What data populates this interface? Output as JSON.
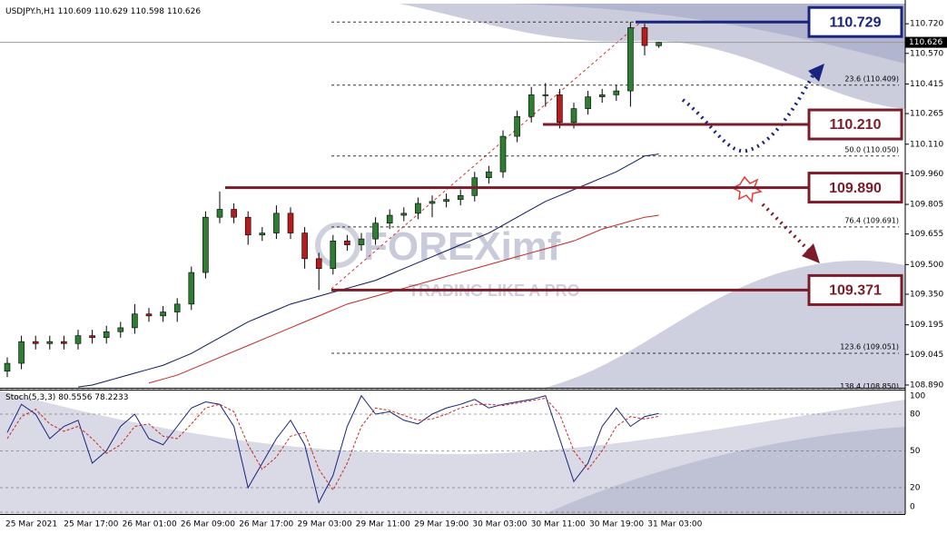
{
  "chart_data": {
    "type": "candlestick",
    "symbol": "USDJPY.h,H1",
    "up_color": "#2e7d32",
    "down_color": "#b71c1c",
    "ylim": [
      108.876,
      110.822
    ],
    "yticks": [
      {
        "value": 110.72,
        "label": "110.720"
      },
      {
        "value": 110.57,
        "label": "110.570"
      },
      110.415,
      110.265,
      {
        "value": 110.11,
        "label": "110.110"
      },
      {
        "value": 109.96,
        "label": "109.960"
      },
      109.805,
      109.655,
      {
        "value": 109.5,
        "label": "109.500"
      },
      {
        "value": 109.35,
        "label": "109.350"
      },
      109.195,
      109.045,
      {
        "value": 108.89,
        "label": "108.890"
      }
    ],
    "x_labels": [
      "25 Mar 2021",
      "25 Mar 17:00",
      "26 Mar 01:00",
      "26 Mar 09:00",
      "26 Mar 17:00",
      "29 Mar 03:00",
      "29 Mar 11:00",
      "29 Mar 19:00",
      "30 Mar 03:00",
      "30 Mar 11:00",
      "30 Mar 19:00",
      "31 Mar 03:00"
    ],
    "open": [
      108.96,
      109.0,
      109.11,
      109.1,
      109.11,
      109.1,
      109.14,
      109.13,
      109.16,
      109.18,
      109.25,
      109.24,
      109.26,
      109.3,
      109.46,
      109.74,
      109.78,
      109.74,
      109.65,
      109.66,
      109.76,
      109.66,
      109.53,
      109.48,
      109.62,
      109.6,
      109.63,
      109.71,
      109.75,
      109.76,
      109.81,
      109.82,
      109.83,
      109.85,
      109.94,
      109.97,
      110.15,
      110.25,
      110.36,
      110.36,
      110.22,
      110.29,
      110.35,
      110.36,
      110.38,
      110.7,
      110.609
    ],
    "high": [
      109.03,
      109.14,
      109.14,
      109.14,
      109.14,
      109.17,
      109.17,
      109.19,
      109.21,
      109.3,
      109.28,
      109.29,
      109.33,
      109.49,
      109.77,
      109.87,
      109.81,
      109.77,
      109.69,
      109.8,
      109.79,
      109.69,
      109.56,
      109.65,
      109.65,
      109.66,
      109.74,
      109.78,
      109.79,
      109.84,
      109.85,
      109.86,
      109.88,
      109.97,
      110.0,
      110.18,
      110.28,
      110.4,
      110.42,
      110.39,
      110.32,
      110.38,
      110.39,
      110.41,
      110.729,
      110.72,
      110.629
    ],
    "low": [
      108.93,
      108.97,
      109.07,
      109.07,
      109.07,
      109.07,
      109.1,
      109.1,
      109.13,
      109.15,
      109.21,
      109.21,
      109.21,
      109.27,
      109.43,
      109.71,
      109.71,
      109.6,
      109.62,
      109.63,
      109.63,
      109.48,
      109.371,
      109.45,
      109.57,
      109.57,
      109.6,
      109.68,
      109.72,
      109.73,
      109.74,
      109.79,
      109.8,
      109.82,
      109.91,
      109.94,
      110.12,
      110.22,
      110.3,
      110.19,
      110.19,
      110.26,
      110.32,
      110.33,
      110.3,
      110.56,
      110.598
    ],
    "close": [
      109.0,
      109.11,
      109.1,
      109.11,
      109.1,
      109.14,
      109.13,
      109.16,
      109.18,
      109.25,
      109.24,
      109.26,
      109.3,
      109.46,
      109.74,
      109.78,
      109.74,
      109.65,
      109.66,
      109.76,
      109.66,
      109.53,
      109.48,
      109.62,
      109.6,
      109.63,
      109.71,
      109.75,
      109.76,
      109.81,
      109.82,
      109.83,
      109.85,
      109.94,
      109.97,
      110.15,
      110.25,
      110.36,
      110.36,
      110.22,
      110.29,
      110.35,
      110.36,
      110.38,
      110.7,
      110.61,
      110.626
    ],
    "moving_averages": [
      {
        "color": "#0d1b5e",
        "values": [
          null,
          null,
          null,
          null,
          null,
          108.88,
          108.89,
          108.91,
          108.93,
          108.95,
          108.97,
          108.99,
          109.02,
          109.05,
          109.09,
          109.13,
          109.17,
          109.21,
          109.24,
          109.27,
          109.3,
          109.32,
          109.34,
          109.36,
          109.38,
          109.4,
          109.42,
          109.45,
          109.48,
          109.51,
          109.54,
          109.57,
          109.6,
          109.63,
          109.66,
          109.7,
          109.74,
          109.78,
          109.82,
          109.85,
          109.88,
          109.91,
          109.94,
          109.97,
          110.01,
          110.05,
          110.06
        ]
      },
      {
        "color": "#c62828",
        "values": [
          null,
          null,
          null,
          null,
          null,
          null,
          null,
          null,
          null,
          null,
          108.9,
          108.92,
          108.94,
          108.97,
          109.0,
          109.03,
          109.06,
          109.09,
          109.12,
          109.15,
          109.18,
          109.21,
          109.24,
          109.27,
          109.3,
          109.32,
          109.34,
          109.36,
          109.38,
          109.4,
          109.42,
          109.44,
          109.46,
          109.48,
          109.5,
          109.52,
          109.54,
          109.56,
          109.58,
          109.6,
          109.62,
          109.65,
          109.68,
          109.7,
          109.72,
          109.74,
          109.75
        ]
      }
    ],
    "fib_levels": [
      {
        "label": "23.6 (110.409)",
        "price": 110.409
      },
      {
        "label": "50.0 (110.050)",
        "price": 110.05
      },
      {
        "label": "76.4 (109.691)",
        "price": 109.691
      },
      {
        "label": "123.6 (109.051)",
        "price": 109.051
      },
      {
        "label": "138.4 (108.850)",
        "price": 108.85
      }
    ],
    "fib_high": 110.729,
    "levels": [
      {
        "value": 110.729,
        "label": "110.729",
        "color": "#1a237e"
      },
      {
        "value": 110.21,
        "label": "110.210",
        "color": "#7b1c2a"
      },
      {
        "value": 109.89,
        "label": "109.890",
        "color": "#7b1c2a"
      },
      {
        "value": 109.371,
        "label": "109.371",
        "color": "#7b1c2a"
      }
    ],
    "watermark": "FOREXimf",
    "watermark_tagline": "TRADING LIKE A PRO",
    "stochastic": {
      "name": "Stoch(5,3,3)",
      "ylim": [
        0,
        100
      ],
      "yticks": [
        100,
        80,
        50,
        20,
        0
      ],
      "series": [
        {
          "name": "main",
          "color": "#1a237e",
          "values": [
            65,
            88,
            80,
            60,
            70,
            75,
            40,
            50,
            70,
            80,
            60,
            55,
            70,
            85,
            90,
            88,
            70,
            20,
            40,
            60,
            75,
            55,
            8,
            30,
            70,
            95,
            80,
            82,
            75,
            72,
            80,
            85,
            88,
            92,
            85,
            88,
            90,
            92,
            95,
            60,
            25,
            40,
            70,
            85,
            70,
            78,
            80.5556
          ]
        },
        {
          "name": "signal",
          "color": "#c62828",
          "values": [
            60,
            78,
            84,
            72,
            66,
            70,
            60,
            48,
            55,
            70,
            72,
            62,
            60,
            72,
            85,
            88,
            82,
            55,
            35,
            45,
            62,
            65,
            35,
            18,
            40,
            70,
            85,
            83,
            79,
            75,
            76,
            80,
            85,
            88,
            88,
            87,
            89,
            91,
            93,
            80,
            50,
            35,
            50,
            70,
            78,
            76,
            78.2233
          ]
        }
      ]
    }
  }
}
